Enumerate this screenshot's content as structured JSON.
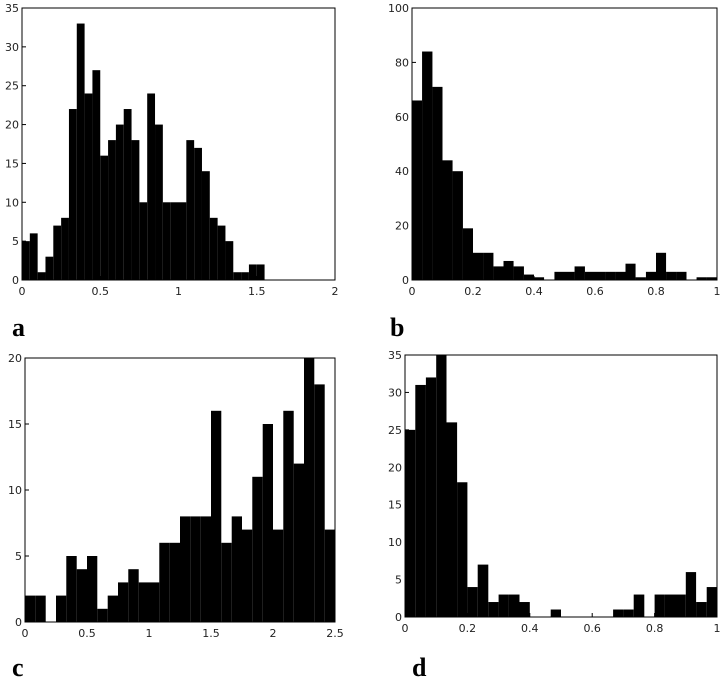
{
  "chart_data": [
    {
      "type": "histogram",
      "label": "a",
      "color": "#000000",
      "bins": [
        0,
        0.05,
        0.1,
        0.15,
        0.2,
        0.25,
        0.3,
        0.35,
        0.4,
        0.45,
        0.5,
        0.55,
        0.6,
        0.65,
        0.7,
        0.75,
        0.8,
        0.85,
        0.9,
        0.95,
        1,
        1.05,
        1.1,
        1.15,
        1.2,
        1.25,
        1.3,
        1.35,
        1.4,
        1.45,
        1.5,
        1.55
      ],
      "values": [
        5,
        6,
        1,
        3,
        7,
        8,
        22,
        33,
        24,
        27,
        16,
        18,
        20,
        22,
        18,
        10,
        24,
        20,
        10,
        10,
        10,
        18,
        17,
        14,
        8,
        7,
        5,
        1,
        1,
        2,
        2
      ],
      "xlim": [
        0,
        2
      ],
      "xticks": [
        0,
        0.5,
        1,
        1.5,
        2
      ],
      "ylim": [
        0,
        35
      ],
      "yticks": [
        0,
        5,
        10,
        15,
        20,
        25,
        30,
        35
      ]
    },
    {
      "type": "histogram",
      "label": "b",
      "color": "#000000",
      "bins": [
        0,
        0.033,
        0.067,
        0.1,
        0.133,
        0.167,
        0.2,
        0.233,
        0.267,
        0.3,
        0.333,
        0.367,
        0.4,
        0.433,
        0.467,
        0.5,
        0.533,
        0.567,
        0.6,
        0.633,
        0.667,
        0.7,
        0.733,
        0.767,
        0.8,
        0.833,
        0.867,
        0.9,
        0.933,
        0.967,
        1
      ],
      "values": [
        66,
        84,
        71,
        44,
        40,
        19,
        10,
        10,
        5,
        7,
        5,
        2,
        1,
        0,
        3,
        3,
        5,
        3,
        3,
        3,
        3,
        6,
        1,
        3,
        10,
        3,
        3,
        0,
        1,
        1
      ],
      "xlim": [
        0,
        1
      ],
      "xticks": [
        0,
        0.2,
        0.4,
        0.6,
        0.8,
        1
      ],
      "ylim": [
        0,
        100
      ],
      "yticks": [
        0,
        20,
        40,
        60,
        80,
        100
      ]
    },
    {
      "type": "histogram",
      "label": "c",
      "color": "#000000",
      "bins": [
        0,
        0.083,
        0.167,
        0.25,
        0.333,
        0.417,
        0.5,
        0.583,
        0.667,
        0.75,
        0.833,
        0.917,
        1,
        1.083,
        1.167,
        1.25,
        1.333,
        1.417,
        1.5,
        1.583,
        1.667,
        1.75,
        1.833,
        1.917,
        2,
        2.083,
        2.167,
        2.25,
        2.333,
        2.417,
        2.5
      ],
      "values": [
        2,
        2,
        0,
        2,
        5,
        4,
        5,
        1,
        2,
        3,
        4,
        3,
        3,
        6,
        6,
        8,
        8,
        8,
        16,
        6,
        8,
        7,
        11,
        15,
        7,
        16,
        12,
        20,
        18,
        7
      ],
      "xlim": [
        0,
        2.5
      ],
      "xticks": [
        0,
        0.5,
        1,
        1.5,
        2,
        2.5
      ],
      "ylim": [
        0,
        20
      ],
      "yticks": [
        0,
        5,
        10,
        15,
        20
      ]
    },
    {
      "type": "histogram",
      "label": "d",
      "color": "#000000",
      "bins": [
        0,
        0.033,
        0.067,
        0.1,
        0.133,
        0.167,
        0.2,
        0.233,
        0.267,
        0.3,
        0.333,
        0.367,
        0.4,
        0.433,
        0.467,
        0.5,
        0.533,
        0.567,
        0.6,
        0.633,
        0.667,
        0.7,
        0.733,
        0.767,
        0.8,
        0.833,
        0.867,
        0.9,
        0.933,
        0.967,
        1
      ],
      "values": [
        25,
        31,
        32,
        35,
        26,
        18,
        4,
        7,
        2,
        3,
        3,
        2,
        0,
        0,
        1,
        0,
        0,
        0,
        0,
        0,
        1,
        1,
        3,
        0,
        3,
        3,
        3,
        6,
        2,
        4
      ],
      "xlim": [
        0,
        1
      ],
      "xticks": [
        0,
        0.2,
        0.4,
        0.6,
        0.8,
        1
      ],
      "ylim": [
        0,
        35
      ],
      "yticks": [
        0,
        5,
        10,
        15,
        20,
        25,
        30,
        35
      ]
    }
  ]
}
